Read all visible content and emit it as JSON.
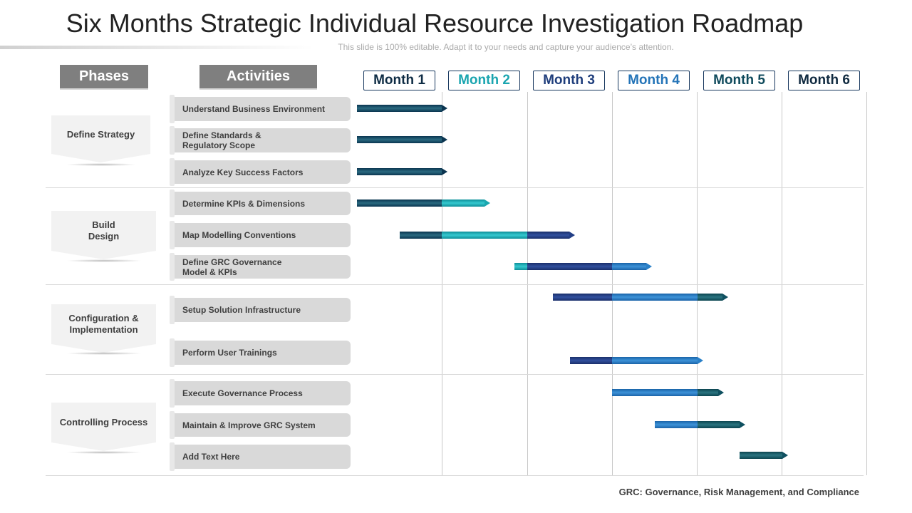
{
  "title": "Six Months Strategic Individual Resource Investigation Roadmap",
  "subtitle": "This slide is 100% editable. Adapt it to your needs and capture your audience’s attention.",
  "headers": {
    "phases": "Phases",
    "activities": "Activities"
  },
  "months": [
    {
      "label": "Month 1",
      "color": "#0f2d45"
    },
    {
      "label": "Month 2",
      "color": "#1aa5b0"
    },
    {
      "label": "Month 3",
      "color": "#1f3e7c"
    },
    {
      "label": "Month 4",
      "color": "#2474b8"
    },
    {
      "label": "Month 5",
      "color": "#0f4a5c"
    },
    {
      "label": "Month 6",
      "color": "#102a40"
    }
  ],
  "phases": [
    {
      "label": "Define Strategy"
    },
    {
      "label": "Build\nDesign"
    },
    {
      "label": "Configuration &\nImplementation"
    },
    {
      "label": "Controlling Process"
    }
  ],
  "activities": [
    {
      "label": "Understand Business Environment"
    },
    {
      "label": "Define Standards &\nRegulatory  Scope"
    },
    {
      "label": "Analyze Key Success Factors"
    },
    {
      "label": "Determine KPIs & Dimensions"
    },
    {
      "label": "Map Modelling  Conventions"
    },
    {
      "label": "Define GRC Governance\nModel & KPIs"
    },
    {
      "label": "Setup Solution Infrastructure"
    },
    {
      "label": "Perform User Trainings"
    },
    {
      "label": "Execute Governance Process"
    },
    {
      "label": "Maintain & Improve GRC  System"
    },
    {
      "label": "Add Text Here"
    }
  ],
  "schedule": [
    {
      "start": 0.0,
      "end": 1.0
    },
    {
      "start": 0.0,
      "end": 1.0
    },
    {
      "start": 0.0,
      "end": 1.0
    },
    {
      "start": 0.0,
      "end": 1.5
    },
    {
      "start": 0.5,
      "end": 2.5
    },
    {
      "start": 1.85,
      "end": 3.4
    },
    {
      "start": 2.3,
      "end": 4.3
    },
    {
      "start": 2.5,
      "end": 4.0
    },
    {
      "start": 3.0,
      "end": 4.25
    },
    {
      "start": 3.5,
      "end": 4.5
    },
    {
      "start": 4.5,
      "end": 5.0
    }
  ],
  "footnote": "GRC: Governance, Risk Management, and Compliance"
}
